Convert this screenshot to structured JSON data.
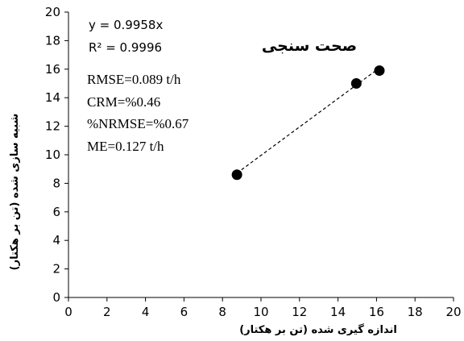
{
  "chart_data": {
    "type": "scatter",
    "title": "صحت سنجی",
    "xlabel": "اندازه گیری شده (تن بر هکتار)",
    "ylabel": "شبیه سازی شده (تن بر هکتار)",
    "xlim": [
      0,
      20
    ],
    "ylim": [
      0,
      20
    ],
    "xticks": [
      "0",
      "2",
      "4",
      "6",
      "8",
      "10",
      "12",
      "14",
      "16",
      "18",
      "20"
    ],
    "yticks": [
      "0",
      "2",
      "4",
      "6",
      "8",
      "10",
      "12",
      "14",
      "16",
      "18",
      "20"
    ],
    "series": [
      {
        "x": [
          8.75,
          14.95,
          16.15
        ],
        "y": [
          8.6,
          15.0,
          15.9
        ]
      }
    ],
    "trendline": {
      "slope": 0.9958,
      "x_range": [
        8.75,
        16.15
      ],
      "style": "dashed"
    },
    "annotations": {
      "equation": "y = 0.9958x",
      "r2": "R² = 0.9996",
      "stats": [
        "RMSE=0.089  t/h",
        "CRM=%0.46",
        "%NRMSE=%0.67",
        "ME=0.127  t/h"
      ]
    },
    "grid": false,
    "legend": "none"
  }
}
